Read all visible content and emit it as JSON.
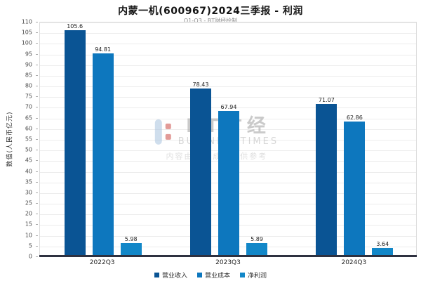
{
  "header": {
    "title": "内蒙一机(600967)2024三季报 - 利润",
    "subtitle": "Q1-Q3 - BT财经绘制"
  },
  "chart_data": {
    "type": "bar",
    "title": "内蒙一机(600967)2024三季报 - 利润",
    "subtitle": "Q1-Q3 - BT财经绘制",
    "categories": [
      "2022Q3",
      "2023Q3",
      "2024Q3"
    ],
    "series": [
      {
        "name": "营业收入",
        "color": "#0a5494",
        "values": [
          105.6,
          78.43,
          71.07
        ]
      },
      {
        "name": "营业成本",
        "color": "#0d77be",
        "values": [
          94.81,
          67.94,
          62.86
        ]
      },
      {
        "name": "净利润",
        "color": "#1287c8",
        "values": [
          5.98,
          5.89,
          3.64
        ]
      }
    ],
    "ylabel": "数值(人民币亿元)",
    "ylim": [
      0,
      110
    ],
    "ytick_step": 5,
    "grid": true,
    "legend_position": "bottom"
  },
  "watermark": {
    "brand": "BT财经",
    "brand_sub": "BUSINESSTIMES",
    "note": "内容由AI生成，仅供参考"
  }
}
